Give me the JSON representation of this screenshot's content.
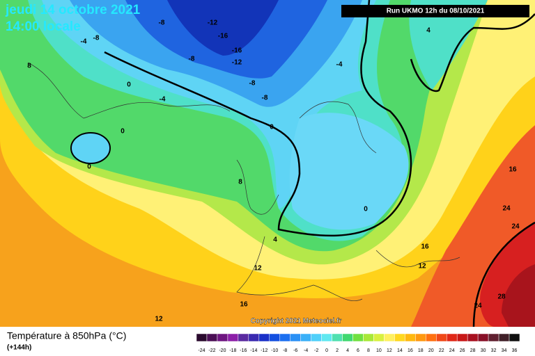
{
  "header": {
    "date": "jeudi 14 octobre 2021",
    "time": "14:00 locale",
    "run": "Run UKMO 12h du 08/10/2021",
    "copyright": "Copyright 2021 Meteociel.fr"
  },
  "footer": {
    "title": "Température à 850hPa (°C)",
    "subtitle": "(+144h)"
  },
  "contour_labels": [
    -8,
    -12,
    -16,
    -4,
    -8,
    -16,
    -12,
    -8,
    -4,
    4,
    8,
    0,
    -4,
    -8,
    -8,
    0,
    0,
    0,
    8,
    0,
    4,
    16,
    24,
    24,
    16,
    12,
    12,
    16,
    24,
    28,
    12
  ],
  "scale_labels": [
    -24,
    -22,
    -20,
    -18,
    -16,
    -14,
    -12,
    -10,
    -8,
    -6,
    -4,
    -2,
    0,
    2,
    4,
    6,
    8,
    10,
    12,
    14,
    16,
    18,
    20,
    22,
    24,
    26,
    28,
    30,
    32,
    34,
    36
  ]
}
